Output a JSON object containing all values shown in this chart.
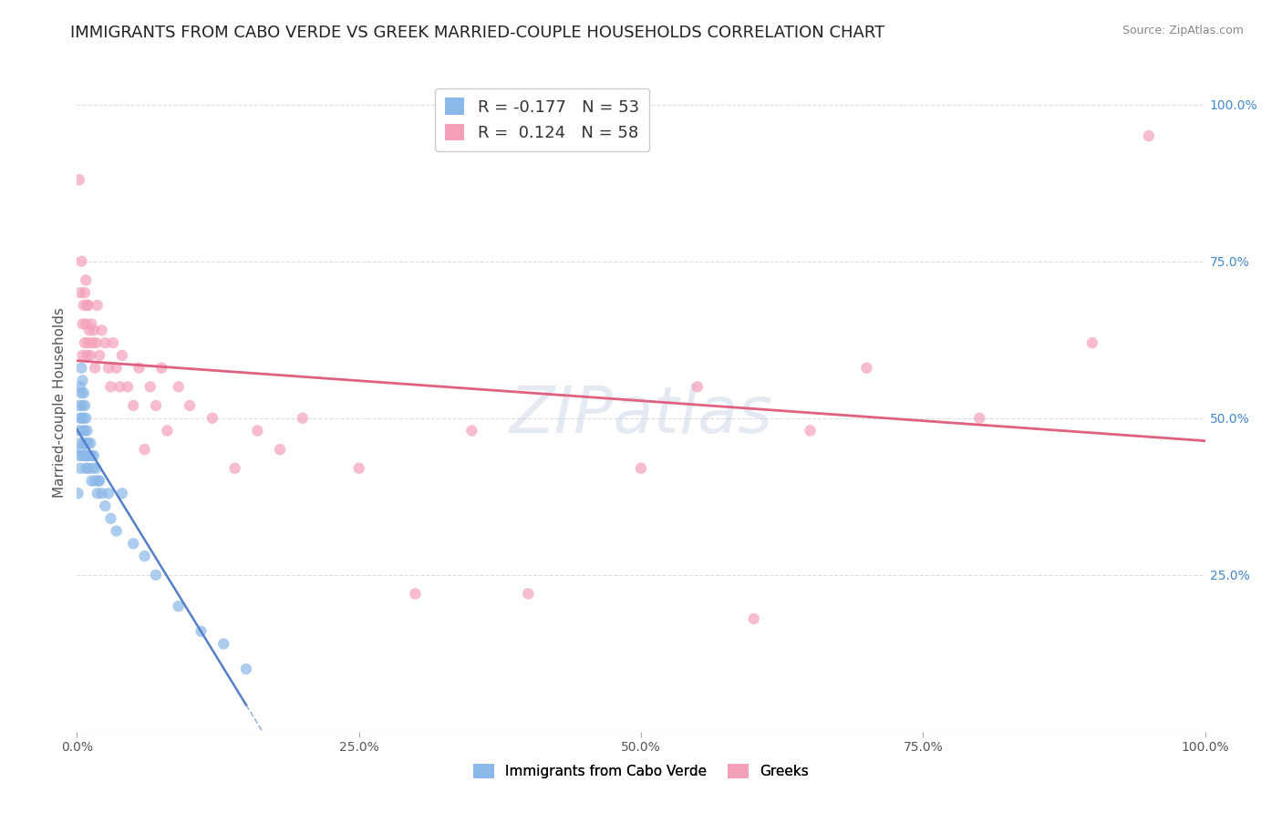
{
  "title": "IMMIGRANTS FROM CABO VERDE VS GREEK MARRIED-COUPLE HOUSEHOLDS CORRELATION CHART",
  "source": "Source: ZipAtlas.com",
  "ylabel": "Married-couple Households",
  "ylabel_right_ticks": [
    "25.0%",
    "50.0%",
    "75.0%",
    "100.0%"
  ],
  "ylabel_right_vals": [
    0.25,
    0.5,
    0.75,
    1.0
  ],
  "legend_bottom": [
    "Immigrants from Cabo Verde",
    "Greeks"
  ],
  "cabo_verde_color": "#8ab8e8",
  "greeks_color": "#f4a0b8",
  "cabo_verde_line_color": "#5580c8",
  "greeks_line_color": "#e06080",
  "cabo_verde_x": [
    0.001,
    0.002,
    0.002,
    0.002,
    0.003,
    0.003,
    0.003,
    0.003,
    0.004,
    0.004,
    0.004,
    0.004,
    0.005,
    0.005,
    0.005,
    0.005,
    0.006,
    0.006,
    0.006,
    0.007,
    0.007,
    0.007,
    0.008,
    0.008,
    0.008,
    0.009,
    0.009,
    0.01,
    0.01,
    0.011,
    0.012,
    0.013,
    0.013,
    0.014,
    0.015,
    0.016,
    0.017,
    0.018,
    0.019,
    0.02,
    0.022,
    0.025,
    0.028,
    0.03,
    0.035,
    0.04,
    0.05,
    0.06,
    0.07,
    0.09,
    0.11,
    0.13,
    0.15
  ],
  "cabo_verde_y": [
    0.38,
    0.52,
    0.48,
    0.44,
    0.55,
    0.5,
    0.46,
    0.42,
    0.58,
    0.54,
    0.5,
    0.45,
    0.56,
    0.52,
    0.48,
    0.44,
    0.54,
    0.5,
    0.46,
    0.52,
    0.48,
    0.44,
    0.5,
    0.46,
    0.42,
    0.48,
    0.44,
    0.46,
    0.42,
    0.44,
    0.46,
    0.44,
    0.4,
    0.42,
    0.44,
    0.4,
    0.42,
    0.38,
    0.4,
    0.4,
    0.38,
    0.36,
    0.38,
    0.34,
    0.32,
    0.38,
    0.3,
    0.28,
    0.25,
    0.2,
    0.16,
    0.14,
    0.1
  ],
  "greeks_x": [
    0.002,
    0.003,
    0.004,
    0.005,
    0.005,
    0.006,
    0.007,
    0.007,
    0.008,
    0.008,
    0.009,
    0.009,
    0.01,
    0.01,
    0.011,
    0.012,
    0.013,
    0.014,
    0.015,
    0.016,
    0.017,
    0.018,
    0.02,
    0.022,
    0.025,
    0.028,
    0.03,
    0.032,
    0.035,
    0.038,
    0.04,
    0.045,
    0.05,
    0.055,
    0.06,
    0.065,
    0.07,
    0.075,
    0.08,
    0.09,
    0.1,
    0.12,
    0.14,
    0.16,
    0.18,
    0.2,
    0.25,
    0.3,
    0.35,
    0.4,
    0.5,
    0.55,
    0.6,
    0.65,
    0.7,
    0.8,
    0.9,
    0.95
  ],
  "greeks_y": [
    0.88,
    0.7,
    0.75,
    0.65,
    0.6,
    0.68,
    0.7,
    0.62,
    0.65,
    0.72,
    0.68,
    0.6,
    0.62,
    0.68,
    0.64,
    0.6,
    0.65,
    0.62,
    0.64,
    0.58,
    0.62,
    0.68,
    0.6,
    0.64,
    0.62,
    0.58,
    0.55,
    0.62,
    0.58,
    0.55,
    0.6,
    0.55,
    0.52,
    0.58,
    0.45,
    0.55,
    0.52,
    0.58,
    0.48,
    0.55,
    0.52,
    0.5,
    0.42,
    0.48,
    0.45,
    0.5,
    0.42,
    0.22,
    0.48,
    0.22,
    0.42,
    0.55,
    0.18,
    0.48,
    0.58,
    0.5,
    0.62,
    0.95
  ],
  "xlim": [
    0.0,
    1.0
  ],
  "ylim": [
    0.0,
    1.05
  ],
  "cabo_verde_line_x_end": 0.15,
  "background_color": "#ffffff",
  "grid_color": "#dddddd",
  "title_fontsize": 13,
  "axis_label_fontsize": 11,
  "tick_fontsize": 10,
  "r_cabo": -0.177,
  "n_cabo": 53,
  "r_greeks": 0.124,
  "n_greeks": 58
}
